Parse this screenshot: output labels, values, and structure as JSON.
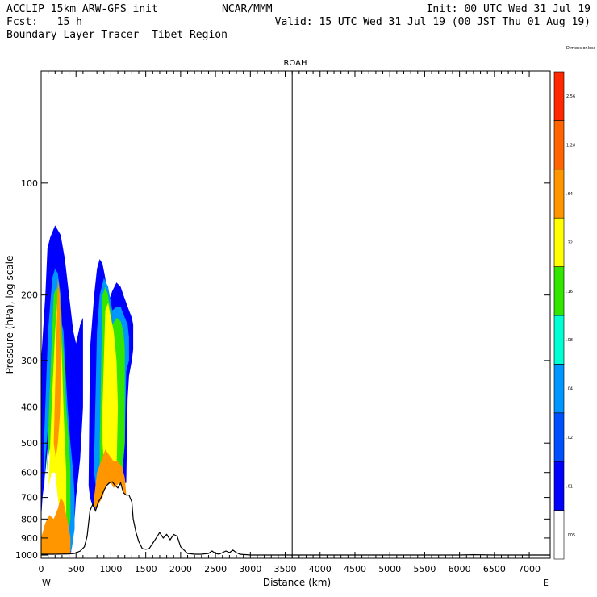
{
  "header": {
    "model": "ACCLIP 15km ARW-GFS init",
    "center": "NCAR/MMM",
    "init": "Init: 00 UTC Wed 31 Jul 19",
    "fcst": "Fcst:   15 h",
    "valid": "Valid: 15 UTC Wed 31 Jul 19 (00 JST Thu 01 Aug 19)",
    "product": "Boundary Layer Tracer  Tibet Region"
  },
  "chart_data": {
    "type": "heatmap",
    "title": "ROAH",
    "xlabel": "Distance (km)",
    "ylabel": "Pressure (hPa), log scale",
    "x_ticks": [
      "0",
      "500",
      "1000",
      "1500",
      "2000",
      "2500",
      "3000",
      "3500",
      "4000",
      "4500",
      "5000",
      "5500",
      "6000",
      "6500",
      "7000"
    ],
    "x_tick_values": [
      0,
      500,
      1000,
      1500,
      2000,
      2500,
      3000,
      3500,
      4000,
      4500,
      5000,
      5500,
      6000,
      6500,
      7000
    ],
    "y_ticks": [
      "100",
      "200",
      "300",
      "400",
      "500",
      "600",
      "700",
      "800",
      "900",
      "1000"
    ],
    "y_tick_values": [
      100,
      200,
      300,
      400,
      500,
      600,
      700,
      800,
      900,
      1000
    ],
    "xlim": [
      0,
      7300
    ],
    "ylim_log_pressure": [
      1020,
      50
    ],
    "marker_distance_km": 3600,
    "left_end_label": "W",
    "right_end_label": "E",
    "colorbar": {
      "colors": [
        "#ffffff",
        "#0000ff",
        "#0050ff",
        "#0096ff",
        "#00ffd2",
        "#32e600",
        "#ffff00",
        "#ff9600",
        "#ff6400",
        "#ff2800"
      ],
      "labels": [
        ".005",
        ".01",
        ".02",
        ".04",
        ".08",
        ".16",
        ".32",
        ".64",
        "1.28",
        "2.56",
        "Dimensionless"
      ]
    },
    "terrain": {
      "x_km": [
        0,
        200,
        400,
        480,
        560,
        620,
        660,
        700,
        740,
        780,
        820,
        860,
        900,
        940,
        980,
        1020,
        1060,
        1100,
        1140,
        1180,
        1220,
        1260,
        1300,
        1320,
        1360,
        1400,
        1450,
        1500,
        1550,
        1600,
        1650,
        1700,
        1750,
        1800,
        1850,
        1900,
        1950,
        2000,
        2100,
        2200,
        2300,
        2400,
        2450,
        2500,
        2550,
        2600,
        2650,
        2700,
        2750,
        2800,
        2850,
        2900,
        2950,
        3000,
        3500,
        4000,
        4500,
        5000,
        5500,
        6000,
        6200,
        6500,
        7000,
        7300
      ],
      "p_hpa": [
        995,
        995,
        993,
        990,
        975,
        950,
        890,
        760,
        730,
        760,
        720,
        700,
        670,
        650,
        640,
        635,
        650,
        660,
        640,
        680,
        690,
        690,
        720,
        800,
        870,
        920,
        960,
        965,
        960,
        930,
        900,
        870,
        900,
        880,
        910,
        880,
        890,
        950,
        990,
        995,
        995,
        990,
        975,
        990,
        995,
        985,
        975,
        985,
        970,
        985,
        995,
        997,
        998,
        1000,
        1000,
        1000,
        1000,
        1000,
        1000,
        1000,
        998,
        1000,
        1000,
        1000
      ]
    },
    "tracer_plumes": [
      {
        "level": 1,
        "x_km": [
          0,
          60,
          90,
          130,
          200,
          280,
          340,
          400,
          460,
          500,
          520,
          560,
          600,
          600,
          560,
          520,
          500,
          480,
          440,
          430,
          420,
          400,
          380,
          350,
          320,
          280,
          260,
          250,
          240,
          200,
          180,
          150,
          120,
          100,
          60,
          20,
          0
        ],
        "p_hpa": [
          300,
          200,
          150,
          140,
          130,
          138,
          160,
          200,
          250,
          270,
          260,
          240,
          230,
          400,
          550,
          650,
          700,
          800,
          900,
          980,
          990,
          800,
          700,
          600,
          500,
          400,
          350,
          300,
          350,
          400,
          350,
          300,
          400,
          500,
          600,
          700,
          800
        ]
      },
      {
        "level": 1,
        "x_km": [
          680,
          700,
          760,
          800,
          840,
          880,
          920,
          960,
          1020,
          1080,
          1140,
          1180,
          1220,
          1260,
          1300,
          1320,
          1320,
          1300,
          1260,
          1240,
          1230,
          1220,
          1180,
          1140,
          1100,
          1060,
          1020,
          980,
          940,
          900,
          860,
          820,
          780,
          740,
          700,
          680
        ],
        "p_hpa": [
          650,
          280,
          200,
          170,
          160,
          165,
          180,
          210,
          195,
          185,
          190,
          200,
          210,
          220,
          230,
          240,
          280,
          300,
          330,
          380,
          500,
          640,
          640,
          620,
          610,
          620,
          625,
          640,
          650,
          660,
          700,
          720,
          750,
          740,
          700,
          650
        ]
      },
      {
        "level": 3,
        "x_km": [
          40,
          100,
          160,
          200,
          240,
          280,
          300,
          320,
          340,
          380,
          420,
          460,
          480,
          480,
          440,
          420,
          400,
          380,
          360,
          340,
          320,
          300,
          280,
          260,
          240,
          220,
          200,
          160,
          100,
          60,
          40
        ],
        "p_hpa": [
          500,
          250,
          180,
          170,
          175,
          200,
          240,
          250,
          300,
          400,
          500,
          600,
          700,
          850,
          960,
          980,
          900,
          800,
          700,
          650,
          600,
          550,
          500,
          450,
          420,
          400,
          380,
          400,
          450,
          550,
          700
        ]
      },
      {
        "level": 3,
        "x_km": [
          760,
          800,
          840,
          900,
          960,
          1020,
          1080,
          1140,
          1200,
          1240,
          1260,
          1260,
          1220,
          1200,
          1160,
          1120,
          1080,
          1040,
          1000,
          960,
          920,
          880,
          840,
          800,
          760
        ],
        "p_hpa": [
          550,
          250,
          200,
          180,
          190,
          220,
          215,
          215,
          230,
          240,
          260,
          300,
          320,
          500,
          620,
          620,
          610,
          615,
          630,
          640,
          660,
          680,
          700,
          700,
          600
        ]
      },
      {
        "level": 5,
        "x_km": [
          80,
          140,
          180,
          220,
          260,
          300,
          330,
          360,
          400,
          420,
          420,
          380,
          340,
          300,
          280,
          250,
          220,
          180,
          140,
          100,
          80
        ],
        "p_hpa": [
          600,
          300,
          200,
          190,
          200,
          250,
          300,
          400,
          500,
          600,
          800,
          900,
          800,
          700,
          600,
          500,
          460,
          440,
          500,
          550,
          600
        ]
      },
      {
        "level": 5,
        "x_km": [
          840,
          880,
          920,
          960,
          1020,
          1080,
          1140,
          1180,
          1200,
          1200,
          1160,
          1120,
          1080,
          1040,
          1000,
          960,
          920,
          880,
          840
        ],
        "p_hpa": [
          500,
          200,
          190,
          200,
          240,
          230,
          235,
          250,
          280,
          500,
          610,
          610,
          600,
          610,
          615,
          630,
          650,
          680,
          600
        ]
      },
      {
        "level": 6,
        "x_km": [
          100,
          150,
          200,
          240,
          280,
          300,
          320,
          340,
          360,
          360,
          320,
          280,
          240,
          200,
          150,
          110,
          100
        ],
        "p_hpa": [
          700,
          400,
          250,
          200,
          240,
          300,
          400,
          500,
          600,
          800,
          880,
          800,
          700,
          600,
          600,
          650,
          700
        ]
      },
      {
        "level": 6,
        "x_km": [
          880,
          920,
          960,
          1000,
          1040,
          1080,
          1100,
          1080,
          1040,
          1000,
          960,
          920,
          880
        ],
        "p_hpa": [
          400,
          220,
          210,
          230,
          250,
          300,
          400,
          600,
          590,
          600,
          620,
          640,
          500
        ]
      },
      {
        "level": 7,
        "x_km": [
          0,
          60,
          120,
          180,
          240,
          280,
          320,
          360,
          400,
          420,
          420,
          380,
          340,
          300,
          260,
          200,
          140,
          80,
          0
        ],
        "p_hpa": [
          900,
          820,
          780,
          800,
          750,
          700,
          720,
          780,
          850,
          900,
          990,
          992,
          994,
          994,
          993,
          994,
          994,
          995,
          995
        ]
      },
      {
        "level": 7,
        "x_km": [
          180,
          210,
          240,
          270,
          290,
          270,
          240,
          210,
          180
        ],
        "p_hpa": [
          500,
          300,
          180,
          200,
          300,
          420,
          500,
          550,
          500
        ]
      },
      {
        "level": 7,
        "x_km": [
          760,
          800,
          860,
          920,
          980,
          1040,
          1100,
          1160,
          1200,
          1220,
          1200,
          1160,
          1120,
          1080,
          1040,
          1000,
          960,
          920,
          880,
          840,
          800,
          760
        ],
        "p_hpa": [
          700,
          600,
          560,
          520,
          540,
          560,
          560,
          580,
          620,
          690,
          690,
          650,
          640,
          650,
          660,
          640,
          640,
          660,
          700,
          720,
          750,
          740
        ]
      }
    ]
  }
}
